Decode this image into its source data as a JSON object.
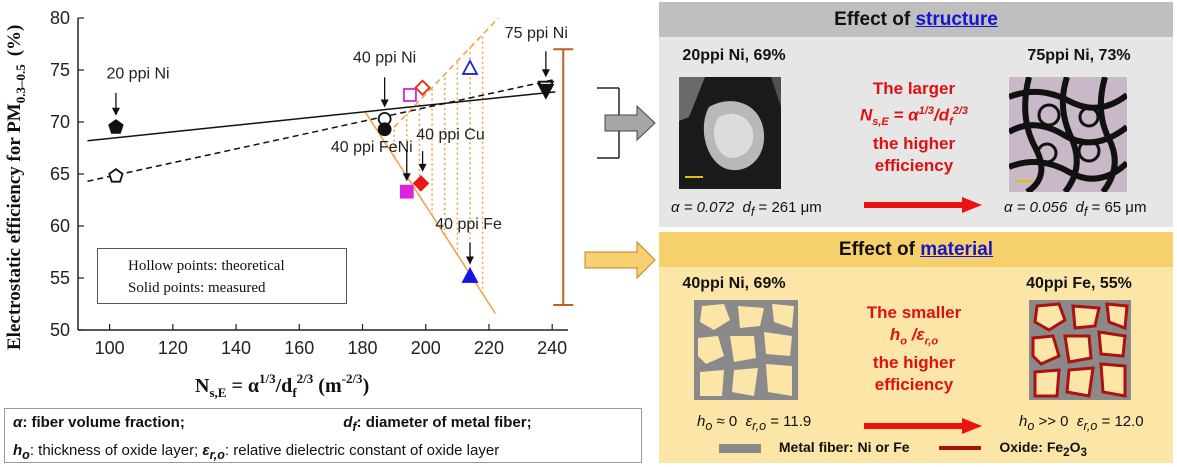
{
  "chart_data": {
    "type": "scatter",
    "ylabel": "Electrostatic efficiency for PM",
    "ylabel_sub": "0.3–0.5",
    "ylabel_unit": "(%)",
    "xlabel_main": "N",
    "xlabel_sub": "s,E",
    "xlabel_eq": " = α",
    "xlabel_exp1": "1/3",
    "xlabel_d": "/d",
    "xlabel_dsub": "f",
    "xlabel_exp2": "2/3",
    "xlabel_unit": " (m",
    "xlabel_unit_exp": "-2/3",
    "xlabel_close": ")",
    "xlim": [
      90,
      245
    ],
    "ylim": [
      50,
      80
    ],
    "xticks": [
      100,
      120,
      140,
      160,
      180,
      200,
      220,
      240
    ],
    "yticks": [
      50,
      55,
      60,
      65,
      70,
      75,
      80
    ],
    "series": [
      {
        "marker": "pentagon",
        "filled": true,
        "color": "#111111",
        "points": [
          {
            "x": 102,
            "y": 69.5
          }
        ]
      },
      {
        "marker": "pentagon",
        "filled": false,
        "color": "#111111",
        "points": [
          {
            "x": 102,
            "y": 64.8
          }
        ]
      },
      {
        "marker": "circle",
        "filled": false,
        "color": "#111111",
        "points": [
          {
            "x": 187,
            "y": 70.3
          }
        ]
      },
      {
        "marker": "circle",
        "filled": true,
        "color": "#111111",
        "points": [
          {
            "x": 187,
            "y": 69.3
          }
        ]
      },
      {
        "marker": "square",
        "filled": false,
        "color": "#dd22dd",
        "points": [
          {
            "x": 195,
            "y": 72.6
          }
        ]
      },
      {
        "marker": "square",
        "filled": true,
        "color": "#dd22dd",
        "points": [
          {
            "x": 194,
            "y": 63.3
          }
        ]
      },
      {
        "marker": "diamond",
        "filled": false,
        "color": "#dd3311",
        "points": [
          {
            "x": 199,
            "y": 73.3
          }
        ]
      },
      {
        "marker": "diamond",
        "filled": true,
        "color": "#e81818",
        "points": [
          {
            "x": 198.5,
            "y": 64.1
          }
        ]
      },
      {
        "marker": "triangle",
        "filled": false,
        "color": "#2222dd",
        "points": [
          {
            "x": 214,
            "y": 75.2
          }
        ]
      },
      {
        "marker": "triangle",
        "filled": true,
        "color": "#1515dd",
        "points": [
          {
            "x": 214,
            "y": 55.2
          }
        ]
      },
      {
        "marker": "triangle-down",
        "filled": false,
        "color": "#111111",
        "points": [
          {
            "x": 238,
            "y": 73.3
          }
        ]
      },
      {
        "marker": "triangle-down",
        "filled": true,
        "color": "#111111",
        "points": [
          {
            "x": 238,
            "y": 73.0
          }
        ]
      }
    ],
    "fit_lines": [
      {
        "style": "solid",
        "color": "#111111",
        "x": [
          93,
          241
        ],
        "y": [
          68.2,
          72.9
        ]
      },
      {
        "style": "dashed",
        "color": "#111111",
        "x": [
          93,
          241
        ],
        "y": [
          64.3,
          74.1
        ]
      },
      {
        "style": "solid",
        "color": "#f0a040",
        "x": [
          181,
          222
        ],
        "y": [
          70.9,
          51.6
        ]
      },
      {
        "style": "dashed",
        "color": "#f0a040",
        "x": [
          190,
          223
        ],
        "y": [
          69.5,
          80
        ]
      }
    ],
    "vertical_fill_x": [
      190,
      194,
      198,
      202,
      206,
      210,
      214,
      218
    ],
    "annotations": [
      {
        "text": "20 ppi Ni",
        "x": 99,
        "y": 74.2,
        "arrow_to": {
          "x": 102,
          "y": 70.6
        },
        "arrow_from_y": 72.8
      },
      {
        "text": "40 ppi Ni",
        "x": 177,
        "y": 75.7,
        "arrow_to": {
          "x": 187,
          "y": 71.4
        },
        "arrow_from_y": 74.3
      },
      {
        "text": "75 ppi Ni",
        "x": 225,
        "y": 78.1,
        "arrow_to": {
          "x": 238,
          "y": 74.3
        },
        "arrow_from_y": 76.8
      },
      {
        "text": "40 ppi FeNi",
        "x": 170,
        "y": 67.1,
        "arrow_to": {
          "x": 194,
          "y": 64.3
        },
        "arrow_from_y": 67.3
      },
      {
        "text": "40 ppi Cu",
        "x": 197,
        "y": 68.3,
        "arrow_to": {
          "x": 199,
          "y": 65.2
        },
        "arrow_from_y": 67.2
      },
      {
        "text": "40 ppi Fe",
        "x": 203,
        "y": 59.7,
        "arrow_to": {
          "x": 214,
          "y": 56.3
        },
        "arrow_from_y": 58.4
      }
    ],
    "bracket_top": 77,
    "bracket_bottom": 52.4
  },
  "legend": {
    "hollow": "Hollow points: theoretical",
    "solid": "Solid points:     measured"
  },
  "caption": {
    "alpha_sym": "α",
    "alpha_text": ": fiber volume fraction;",
    "df_sym": "d",
    "df_sub": "f",
    "df_text": ": diameter of metal fiber;",
    "ho_sym": "h",
    "ho_sub": "o",
    "ho_text": ": thickness of oxide layer;",
    "eps_sym": "ε",
    "eps_sub": "r,o",
    "eps_text": ": relative dielectric constant of oxide layer"
  },
  "structure": {
    "title_pre": "Effect of ",
    "title_link": "structure",
    "left_label": "20ppi Ni, 69%",
    "right_label": "75ppi Ni, 73%",
    "red1": "The larger",
    "red2": "N",
    "red2_sub": "s,E",
    "red2_eq": " = α",
    "red2_exp1": "1/3",
    "red2_d": "/d",
    "red2_dsub": "f",
    "red2_exp2": "2/3",
    "red3": "the higher",
    "red4": "efficiency",
    "left_alpha": "α = 0.072",
    "left_df": "d",
    "left_df_sub": "f",
    "left_df_val": " = 261 μm",
    "right_alpha": "α = 0.056",
    "right_df": "d",
    "right_df_sub": "f",
    "right_df_val": " = 65 μm",
    "bg": "#e6e6e6",
    "header_bg": "#bfbfbf"
  },
  "material": {
    "title_pre": "Effect of ",
    "title_link": "material",
    "left_label": "40ppi Ni, 69%",
    "right_label": "40ppi Fe, 55%",
    "red1": "The smaller",
    "red2_h": "h",
    "red2_hsub": "o",
    "red2_slash": " /",
    "red2_eps": "ε",
    "red2_epssub": "r,o",
    "red3": "the higher",
    "red4": "efficiency",
    "left_ho": "h",
    "left_ho_sub": "o",
    "left_ho_val": " ≈ 0",
    "left_eps": "ε",
    "left_eps_sub": "r,o",
    "left_eps_val": " = 11.9",
    "right_ho": "h",
    "right_ho_sub": "o",
    "right_ho_val": " >> 0",
    "right_eps": "ε",
    "right_eps_sub": "r,o",
    "right_eps_val": " = 12.0",
    "legend_fiber": "Metal fiber: Ni or Fe",
    "legend_oxide": "Oxide: Fe",
    "legend_oxide_sub1": "2",
    "legend_oxide_mid": "O",
    "legend_oxide_sub2": "3",
    "bg": "#fbe6a8",
    "header_bg": "#f6d06a"
  },
  "colors": {
    "arrow_red": "#ee1111",
    "fiber_gray": "#8a8a8a",
    "oxide_red": "#b01010",
    "bracket": "#c06020"
  }
}
